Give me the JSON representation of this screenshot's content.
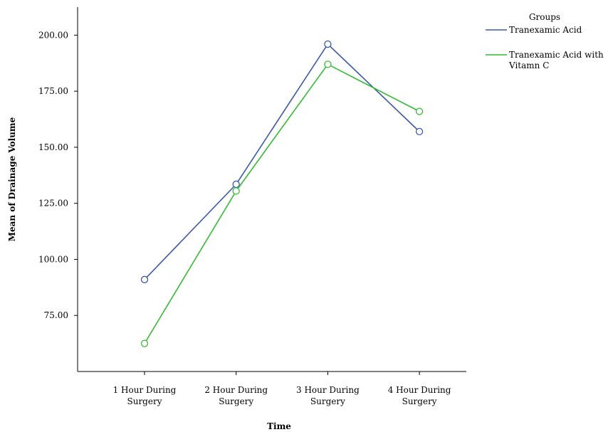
{
  "chart_data": {
    "type": "line",
    "xlabel": "Time",
    "ylabel": "Mean of Drainage Volume",
    "ylim": [
      50,
      212.5
    ],
    "yticks": [
      "75.00",
      "100.00",
      "125.00",
      "150.00",
      "175.00",
      "200.00"
    ],
    "categories": [
      [
        "1 Hour During",
        "Surgery"
      ],
      [
        "2 Hour During",
        "Surgery"
      ],
      [
        "3 Hour During",
        "Surgery"
      ],
      [
        "4 Hour During",
        "Surgery"
      ]
    ],
    "legend": {
      "title": "Groups",
      "placement": "top-right"
    },
    "series": [
      {
        "name": "Tranexamic Acid",
        "name_lines": [
          "Tranexamic Acid"
        ],
        "color": "#3a5aa6",
        "values": [
          91,
          133.5,
          196,
          157
        ]
      },
      {
        "name": "Tranexamic Acid with Vitamn C",
        "name_lines": [
          "Tranexamic Acid with",
          "Vitamn C"
        ],
        "color": "#33bb33",
        "values": [
          62.5,
          130.5,
          187,
          166
        ]
      }
    ],
    "marker": "open-circle",
    "grid": false
  }
}
